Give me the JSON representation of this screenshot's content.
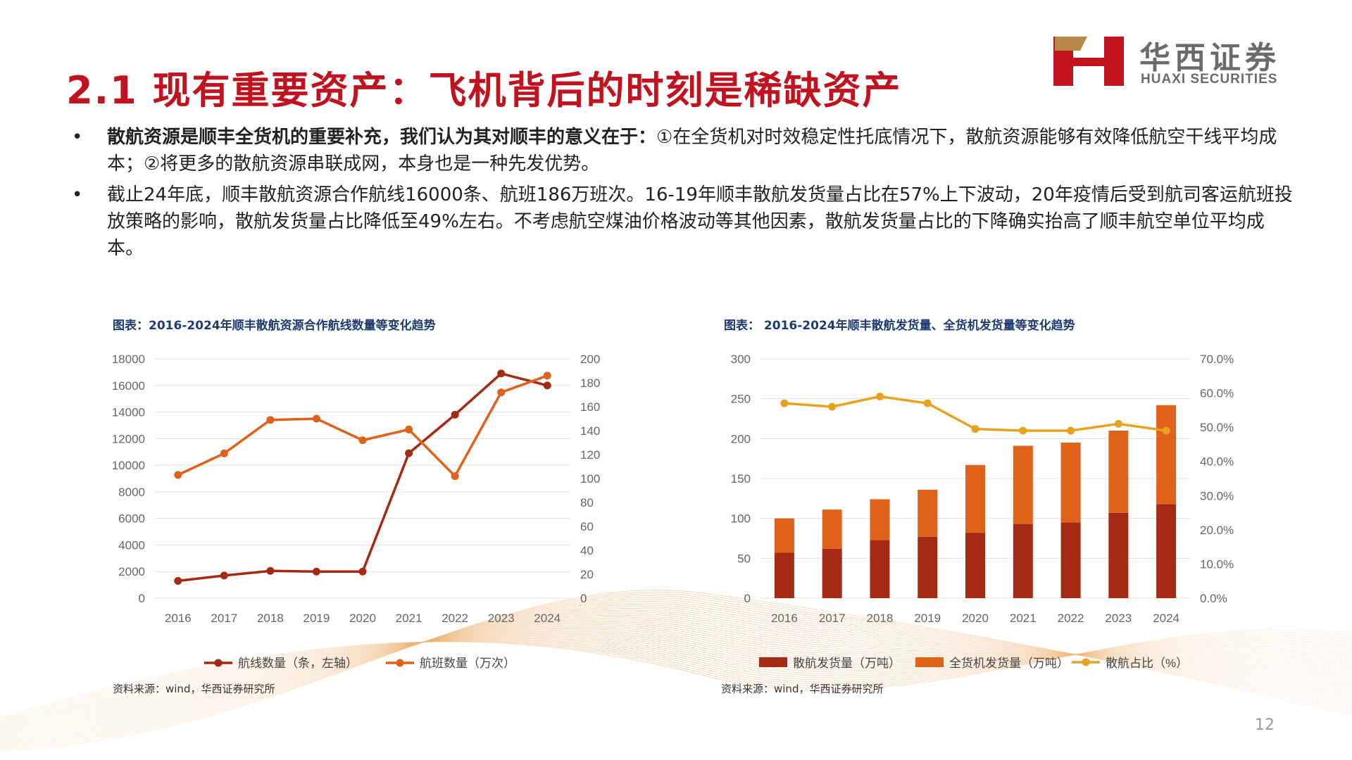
{
  "header": {
    "title": "2.1 现有重要资产：飞机背后的时刻是稀缺资产",
    "logo_cn": "华西证券",
    "logo_en": "HUAXI SECURITIES"
  },
  "bullets": [
    {
      "bold": "散航资源是顺丰全货机的重要补充，我们认为其对顺丰的意义在于：",
      "text": "①在全货机对时效稳定性托底情况下，散航资源能够有效降低航空干线平均成本；②将更多的散航资源串联成网，本身也是一种先发优势。"
    },
    {
      "bold": "",
      "text": "截止24年底，顺丰散航资源合作航线16000条、航班186万班次。16-19年顺丰散航发货量占比在57%上下波动，20年疫情后受到航司客运航班投放策略的影响，散航发货量占比降低至49%左右。不考虑航空煤油价格波动等其他因素，散航发货量占比的下降确实抬高了顺丰航空单位平均成本。"
    }
  ],
  "charts": {
    "left": {
      "title": "图表：2016-2024年顺丰散航资源合作航线数量等变化趋势",
      "source": "资料来源：wind，华西证券研究所"
    },
    "right": {
      "title": "图表： 2016-2024年顺丰散航发货量、全货机发货量等变化趋势",
      "source": "资料来源：wind，华西证券研究所"
    }
  },
  "page_number": "12",
  "colors": {
    "title_red": "#c1121f",
    "dark_red": "#a52a13",
    "orange": "#e0611a",
    "gold": "#e8a21f",
    "chart_title_blue": "#1f3b73"
  },
  "chart_data": [
    {
      "type": "line",
      "categories": [
        "2016",
        "2017",
        "2018",
        "2019",
        "2020",
        "2021",
        "2022",
        "2023",
        "2024"
      ],
      "y_ticks_left": [
        "0",
        "2000",
        "4000",
        "6000",
        "8000",
        "10000",
        "12000",
        "14000",
        "16000",
        "18000"
      ],
      "y_ticks_right": [
        "0",
        "20",
        "40",
        "60",
        "80",
        "100",
        "120",
        "140",
        "160",
        "180",
        "200"
      ],
      "ylim_left": [
        0,
        18000
      ],
      "ylim_right": [
        0,
        200
      ],
      "series": [
        {
          "name": "航线数量（条，左轴）",
          "axis": "left",
          "color": "#a52a13",
          "values": [
            1300,
            1700,
            2050,
            2000,
            2000,
            10900,
            13800,
            16900,
            16000
          ]
        },
        {
          "name": "航班数量（万次）",
          "axis": "right",
          "color": "#e0611a",
          "values": [
            103,
            121,
            149,
            150,
            132,
            141,
            102,
            172,
            186
          ]
        }
      ],
      "legend": "bottom"
    },
    {
      "type": "bar",
      "categories": [
        "2016",
        "2017",
        "2018",
        "2019",
        "2020",
        "2021",
        "2022",
        "2023",
        "2024"
      ],
      "y_ticks_left": [
        "0",
        "50",
        "100",
        "150",
        "200",
        "250",
        "300"
      ],
      "y_ticks_right": [
        "0.0%",
        "10.0%",
        "20.0%",
        "30.0%",
        "40.0%",
        "50.0%",
        "60.0%",
        "70.0%"
      ],
      "ylim_left": [
        0,
        300
      ],
      "ylim_right": [
        0,
        70
      ],
      "stacked": true,
      "series": [
        {
          "name": "散航发货量（万吨）",
          "kind": "bar",
          "axis": "left",
          "color": "#a52a13",
          "values": [
            57,
            62,
            73,
            77,
            82,
            93,
            95,
            107,
            118
          ]
        },
        {
          "name": "全货机发货量（万吨）",
          "kind": "bar",
          "axis": "left",
          "color": "#e0611a",
          "values": [
            43,
            49,
            51,
            59,
            85,
            98,
            100,
            103,
            124
          ]
        },
        {
          "name": "散航占比（%）",
          "kind": "line",
          "axis": "right",
          "color": "#e8a21f",
          "values": [
            57.0,
            56.0,
            59.0,
            57.0,
            49.5,
            49.0,
            49.0,
            51.0,
            49.0
          ]
        }
      ],
      "legend": "bottom"
    }
  ]
}
